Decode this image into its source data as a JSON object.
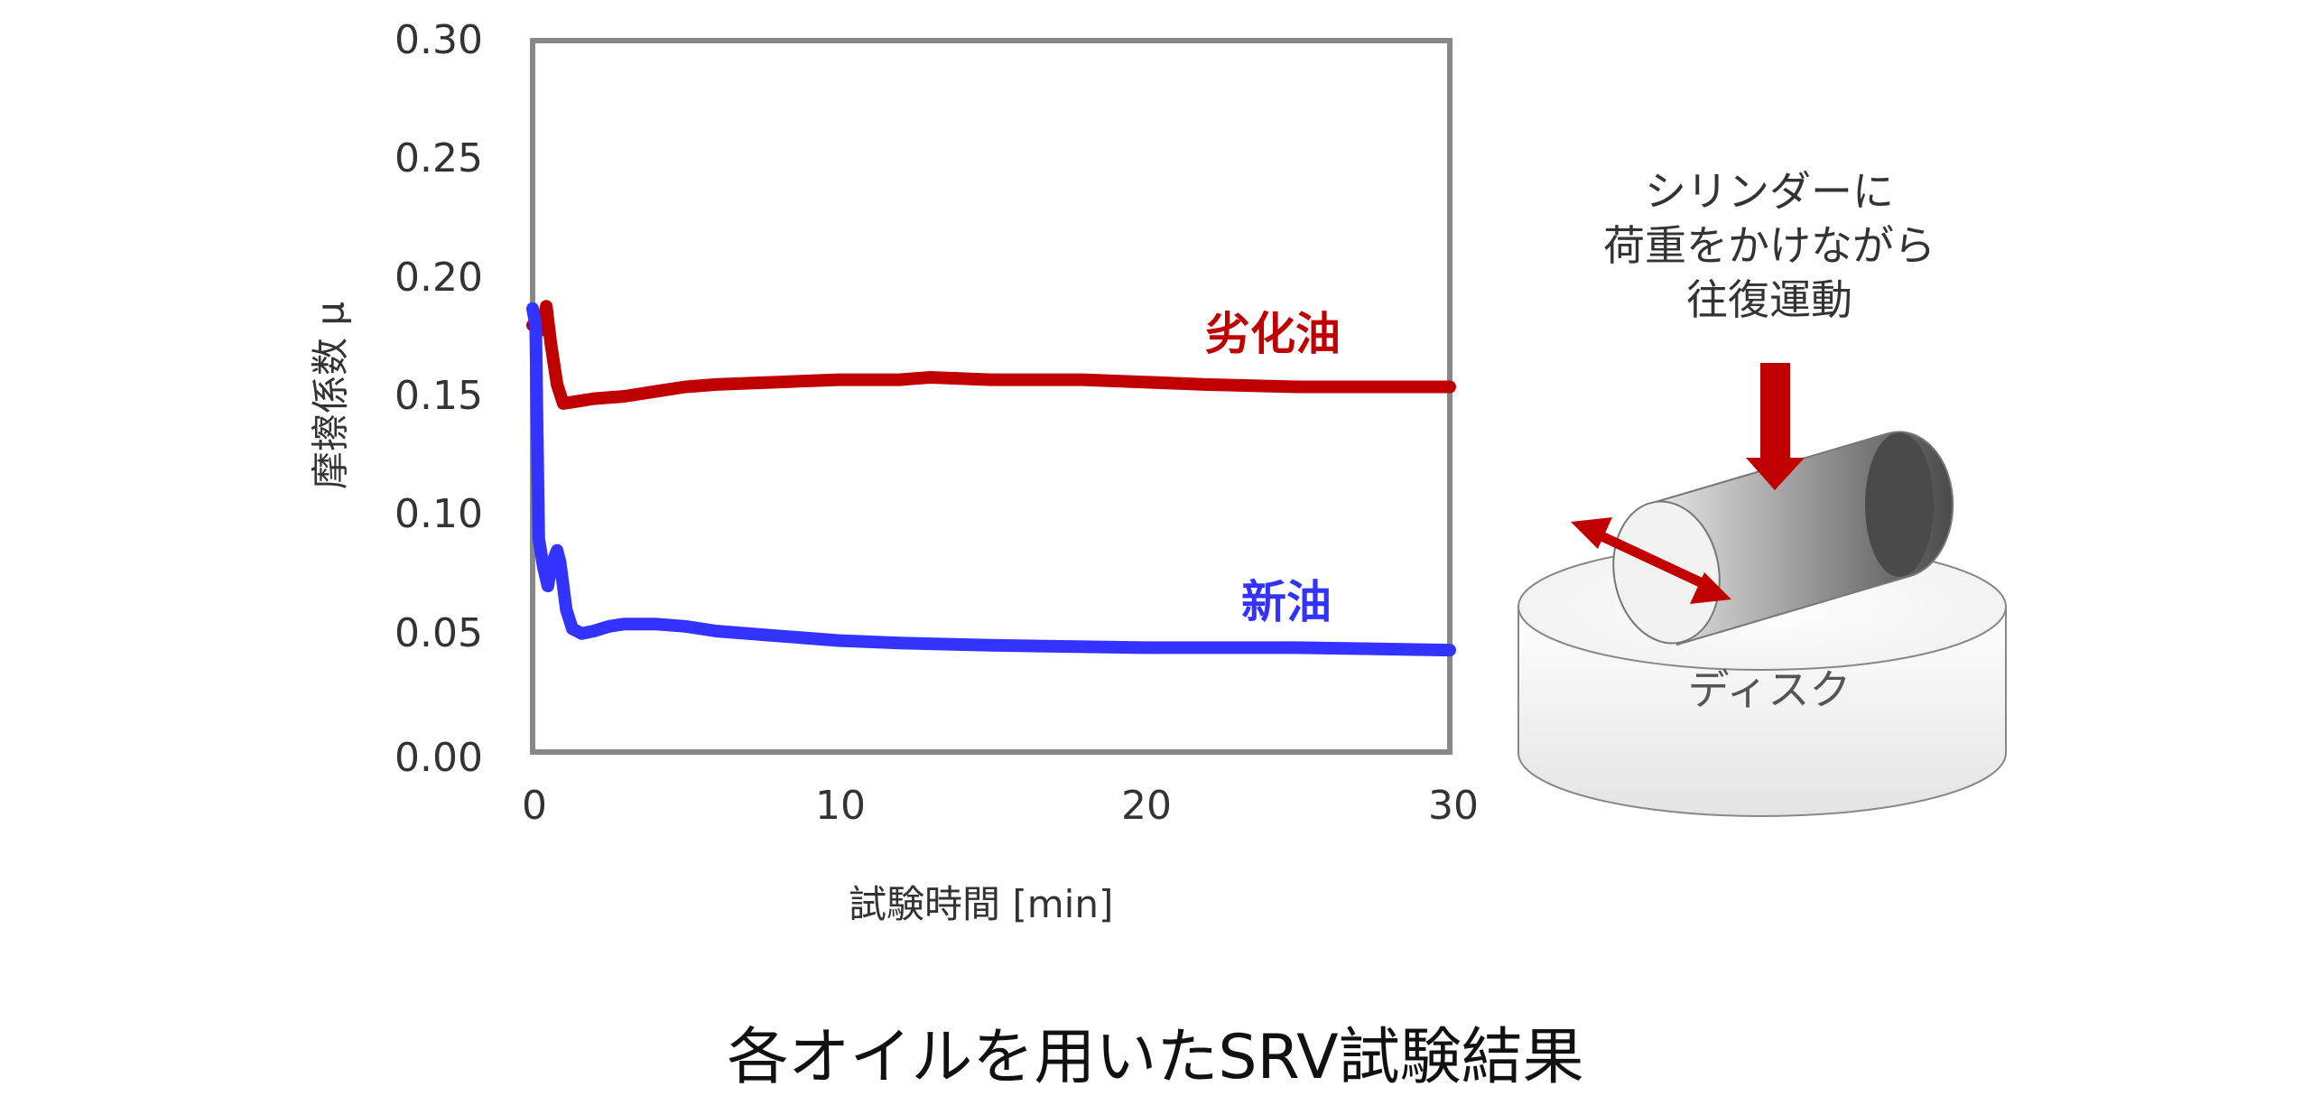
{
  "chart_data": {
    "type": "line",
    "title": "",
    "xlabel": "試験時間 [min]",
    "ylabel": "摩擦係数 μ",
    "xlim": [
      0,
      30
    ],
    "ylim": [
      0,
      0.3
    ],
    "xticks": [
      "0",
      "10",
      "20",
      "30"
    ],
    "yticks": [
      "0.00",
      "0.05",
      "0.10",
      "0.15",
      "0.20",
      "0.25",
      "0.30"
    ],
    "grid": false,
    "legend": "inline labels",
    "series": [
      {
        "name": "劣化油",
        "color": "#C00000",
        "x": [
          0,
          0.2,
          0.3,
          0.45,
          0.6,
          0.8,
          1.0,
          1.5,
          2,
          3,
          4,
          5,
          6,
          8,
          10,
          12,
          13,
          15,
          18,
          20,
          22,
          25,
          28,
          30
        ],
        "values": [
          0.18,
          0.18,
          0.178,
          0.188,
          0.172,
          0.155,
          0.147,
          0.148,
          0.149,
          0.15,
          0.152,
          0.154,
          0.155,
          0.156,
          0.157,
          0.157,
          0.158,
          0.157,
          0.157,
          0.156,
          0.155,
          0.154,
          0.154,
          0.154
        ]
      },
      {
        "name": "新油",
        "color": "#3333FF",
        "x": [
          0,
          0.1,
          0.2,
          0.35,
          0.5,
          0.6,
          0.8,
          0.9,
          1.1,
          1.3,
          1.6,
          2,
          2.5,
          3,
          4,
          5,
          6,
          8,
          10,
          12,
          15,
          20,
          25,
          30
        ],
        "values": [
          0.187,
          0.18,
          0.09,
          0.078,
          0.07,
          0.078,
          0.085,
          0.08,
          0.06,
          0.052,
          0.05,
          0.051,
          0.053,
          0.054,
          0.054,
          0.053,
          0.051,
          0.049,
          0.047,
          0.046,
          0.045,
          0.044,
          0.044,
          0.043
        ]
      }
    ]
  },
  "series_labels": {
    "degraded": "劣化油",
    "new": "新油"
  },
  "diagram": {
    "description_lines": [
      "シリンダーに",
      "荷重をかけながら",
      "往復運動"
    ],
    "disc_label": "ディスク",
    "arrow_color": "#C00000"
  },
  "caption": "各オイルを用いたSRV試験結果"
}
